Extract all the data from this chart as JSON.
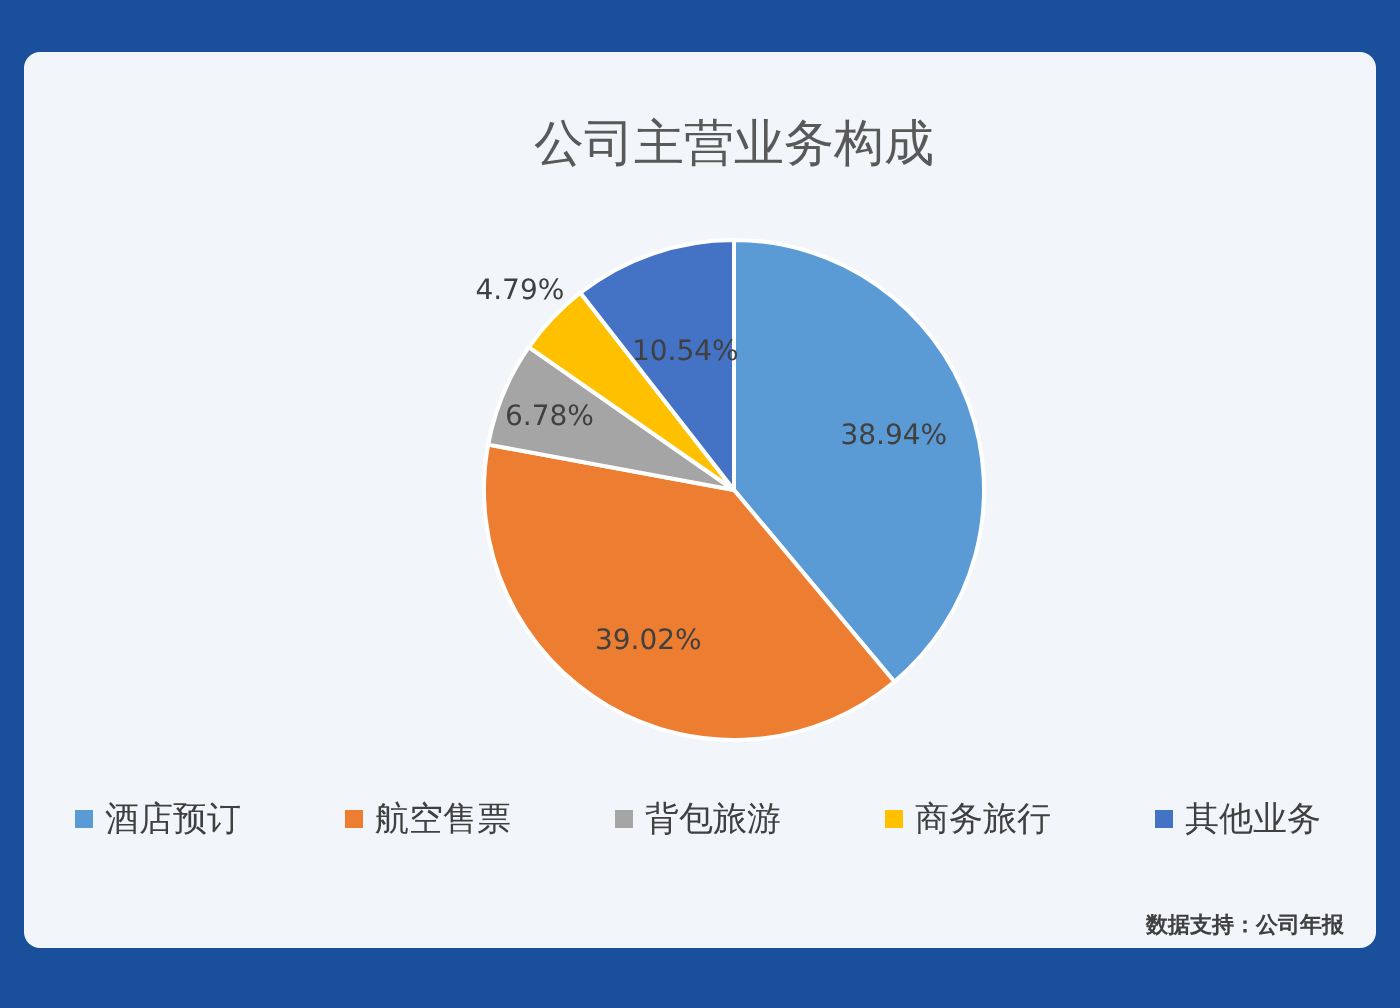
{
  "chart_data": {
    "type": "pie",
    "title": "公司主营业务构成",
    "categories": [
      "酒店预订",
      "航空售票",
      "背包旅游",
      "商务旅行",
      "其他业务"
    ],
    "values": [
      38.94,
      39.02,
      6.78,
      4.79,
      10.54
    ],
    "colors": [
      "#5b9bd5",
      "#ed7d31",
      "#a5a5a5",
      "#ffc000",
      "#4472c4"
    ],
    "value_labels": [
      "38.94%",
      "39.02%",
      "6.78%",
      "4.79%",
      "10.54%"
    ],
    "legend": "bottom",
    "annotations": [
      "数据支持：公司年报"
    ]
  }
}
